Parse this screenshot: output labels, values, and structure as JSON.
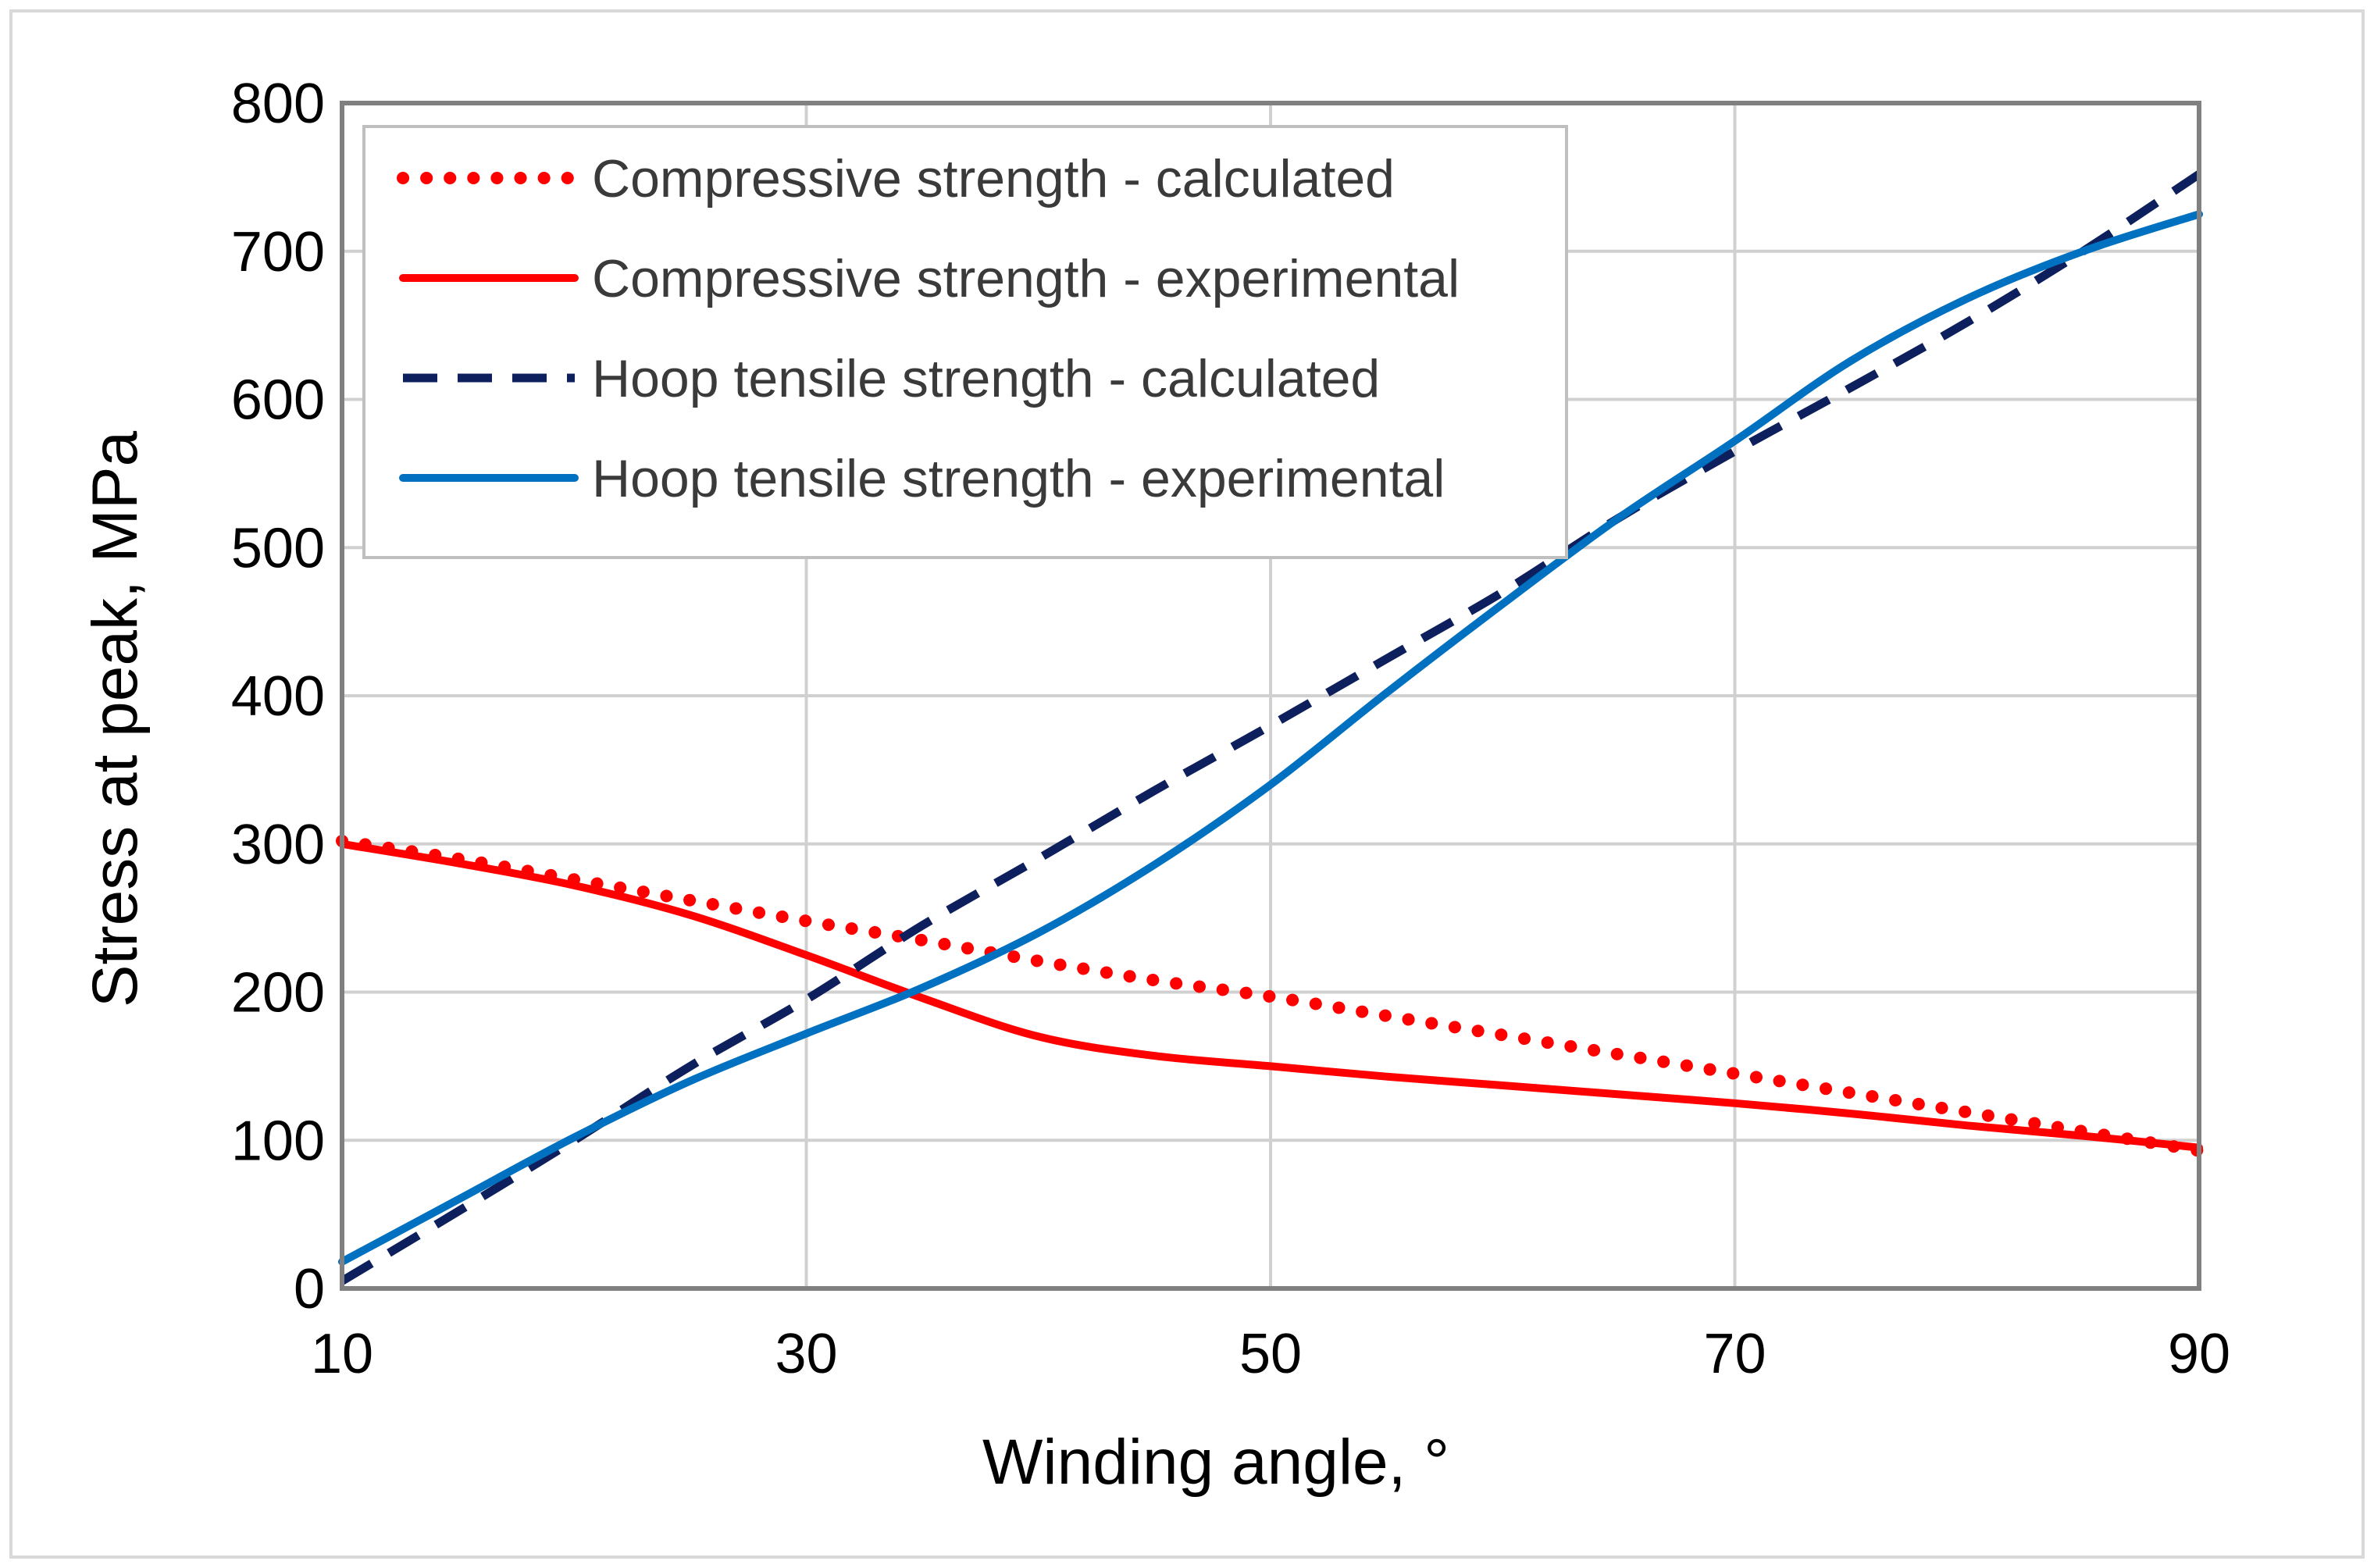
{
  "chart_data": {
    "type": "line",
    "title": "",
    "xlabel": "Winding angle, °",
    "ylabel": "Stress at peak, MPa",
    "xlim": [
      10,
      90
    ],
    "ylim": [
      0,
      800
    ],
    "xticks": [
      10,
      30,
      50,
      70,
      90
    ],
    "yticks": [
      0,
      100,
      200,
      300,
      400,
      500,
      600,
      700,
      800
    ],
    "grid": true,
    "legend_position": "top-left",
    "series": [
      {
        "name": "Compressive strength - calculated",
        "color": "#ff0000",
        "style": "dotted",
        "x": [
          10,
          15,
          20,
          25,
          30,
          35,
          40,
          45,
          50,
          55,
          60,
          65,
          70,
          75,
          80,
          85,
          90
        ],
        "y": [
          302,
          290,
          276,
          262,
          248,
          235,
          221,
          208,
          197,
          184,
          171,
          158,
          145,
          132,
          119,
          106,
          93
        ]
      },
      {
        "name": "Compressive strength - experimental",
        "color": "#ff0000",
        "style": "solid",
        "x": [
          10,
          15,
          20,
          25,
          30,
          35,
          40,
          45,
          50,
          55,
          60,
          65,
          70,
          75,
          80,
          85,
          90
        ],
        "y": [
          300,
          287,
          272,
          252,
          225,
          196,
          170,
          157,
          150,
          143,
          137,
          131,
          125,
          118,
          110,
          103,
          95
        ]
      },
      {
        "name": "Hoop tensile strength - calculated",
        "color": "#0d1f5c",
        "style": "dashed",
        "x": [
          10,
          15,
          20,
          25,
          30,
          35,
          40,
          45,
          50,
          55,
          60,
          65,
          70,
          75,
          80,
          85,
          90
        ],
        "y": [
          5,
          52,
          100,
          150,
          195,
          245,
          290,
          336,
          380,
          425,
          470,
          520,
          565,
          608,
          652,
          700,
          752
        ]
      },
      {
        "name": "Hoop tensile strength - experimental",
        "color": "#0070c0",
        "style": "solid",
        "x": [
          10,
          15,
          20,
          25,
          30,
          35,
          40,
          45,
          50,
          55,
          60,
          65,
          70,
          75,
          80,
          85,
          90
        ],
        "y": [
          18,
          60,
          102,
          140,
          172,
          203,
          240,
          286,
          340,
          402,
          462,
          520,
          572,
          626,
          668,
          700,
          725
        ]
      }
    ]
  }
}
